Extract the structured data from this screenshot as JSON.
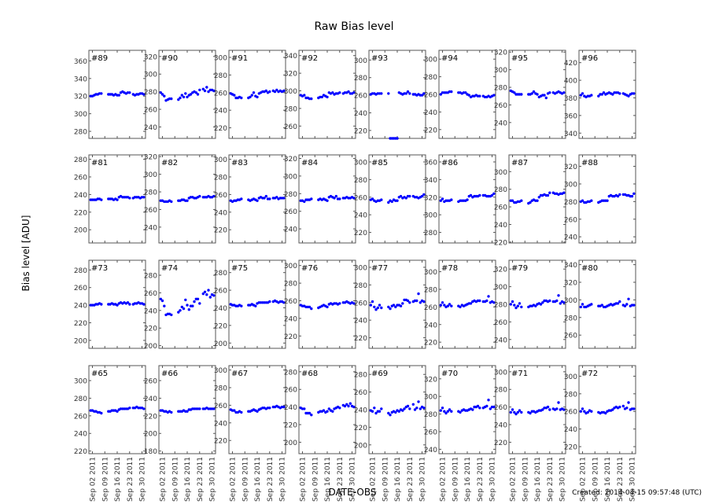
{
  "chart_data": {
    "type": "scatter",
    "title": "Raw Bias level",
    "ylabel": "Bias level [ADU]",
    "xlabel": "DATE-OBS",
    "footer": "Created: 2014-04-15 09:57:48 (UTC)",
    "marker_color": "#0000ff",
    "grid": false,
    "xlim": [
      "2011-08-31",
      "2011-10-02"
    ],
    "x_ticks": [
      "2011-09-02",
      "2011-09-09",
      "2011-09-16",
      "2011-09-23",
      "2011-09-30"
    ],
    "x_tick_labels": [
      "Sep 02 2011",
      "Sep 09 2011",
      "Sep 16 2011",
      "Sep 23 2011",
      "Sep 30 2011"
    ],
    "y_tick_step": 20,
    "dates": [
      "2011-09-01",
      "2011-09-02",
      "2011-09-03",
      "2011-09-04",
      "2011-09-05",
      "2011-09-06",
      "2011-09-07",
      "2011-09-11",
      "2011-09-12",
      "2011-09-13",
      "2011-09-14",
      "2011-09-15",
      "2011-09-16",
      "2011-09-17",
      "2011-09-18",
      "2011-09-19",
      "2011-09-20",
      "2011-09-21",
      "2011-09-22",
      "2011-09-23",
      "2011-09-25",
      "2011-09-26",
      "2011-09-27",
      "2011-09-28",
      "2011-09-29",
      "2011-09-30",
      "2011-10-01"
    ],
    "panels": [
      {
        "label": "#89",
        "ylim": [
          272,
          372
        ],
        "values": [
          320,
          320,
          321,
          322,
          322,
          323,
          323,
          322,
          322,
          322,
          321,
          322,
          321,
          321,
          324,
          325,
          324,
          323,
          324,
          324,
          322,
          321,
          322,
          322,
          323,
          323,
          322
        ]
      },
      {
        "label": "#90",
        "ylim": [
          227,
          327
        ],
        "values": [
          279,
          277,
          275,
          270,
          271,
          272,
          272,
          271,
          273,
          276,
          274,
          278,
          274,
          276,
          277,
          279,
          280,
          279,
          277,
          282,
          283,
          281,
          285,
          280,
          282,
          282,
          281
        ]
      },
      {
        "label": "#91",
        "ylim": [
          208,
          308
        ],
        "values": [
          259,
          258,
          257,
          254,
          254,
          255,
          254,
          254,
          255,
          257,
          260,
          256,
          255,
          259,
          260,
          261,
          261,
          262,
          260,
          261,
          262,
          261,
          263,
          261,
          262,
          261,
          262
        ]
      },
      {
        "label": "#92",
        "ylim": [
          246,
          346
        ],
        "values": [
          295,
          294,
          295,
          292,
          292,
          291,
          291,
          292,
          293,
          293,
          295,
          294,
          293,
          298,
          297,
          298,
          296,
          297,
          297,
          298,
          297,
          298,
          298,
          299,
          297,
          297,
          298
        ]
      },
      {
        "label": "#93",
        "ylim": [
          211,
          311
        ],
        "values": [
          261,
          262,
          262,
          261,
          262,
          262,
          262,
          262,
          211,
          211,
          211,
          211,
          211,
          263,
          262,
          261,
          262,
          262,
          264,
          262,
          261,
          261,
          260,
          261,
          260,
          260,
          262
        ]
      },
      {
        "label": "#94",
        "ylim": [
          210,
          310
        ],
        "values": [
          260,
          262,
          262,
          262,
          262,
          263,
          263,
          262,
          262,
          261,
          262,
          262,
          260,
          259,
          257,
          258,
          258,
          259,
          258,
          258,
          258,
          257,
          257,
          258,
          257,
          258,
          259
        ]
      },
      {
        "label": "#95",
        "ylim": [
          222,
          322
        ],
        "values": [
          276,
          275,
          274,
          272,
          272,
          272,
          272,
          272,
          272,
          273,
          275,
          273,
          272,
          269,
          270,
          271,
          271,
          268,
          273,
          274,
          274,
          273,
          274,
          275,
          274,
          273,
          274
        ]
      },
      {
        "label": "#96",
        "ylim": [
          334,
          434
        ],
        "values": [
          383,
          385,
          382,
          381,
          382,
          382,
          383,
          382,
          384,
          384,
          386,
          384,
          385,
          386,
          385,
          384,
          386,
          386,
          386,
          385,
          385,
          384,
          383,
          382,
          384,
          385,
          385
        ]
      },
      {
        "label": "#81",
        "ylim": [
          185,
          285
        ],
        "values": [
          234,
          234,
          234,
          234,
          235,
          235,
          234,
          235,
          235,
          235,
          234,
          235,
          234,
          237,
          238,
          237,
          237,
          237,
          237,
          236,
          236,
          237,
          237,
          237,
          236,
          237,
          237
        ]
      },
      {
        "label": "#82",
        "ylim": [
          222,
          322
        ],
        "values": [
          270,
          270,
          269,
          269,
          269,
          270,
          269,
          270,
          270,
          271,
          271,
          270,
          270,
          273,
          274,
          274,
          273,
          273,
          274,
          275,
          274,
          274,
          274,
          275,
          274,
          274,
          275
        ]
      },
      {
        "label": "#83",
        "ylim": [
          205,
          305
        ],
        "values": [
          253,
          252,
          253,
          253,
          254,
          254,
          255,
          254,
          253,
          254,
          255,
          254,
          253,
          256,
          257,
          256,
          256,
          258,
          255,
          255,
          256,
          256,
          257,
          255,
          256,
          256,
          256
        ]
      },
      {
        "label": "#84",
        "ylim": [
          224,
          324
        ],
        "values": [
          272,
          272,
          271,
          273,
          273,
          273,
          274,
          273,
          274,
          273,
          274,
          273,
          272,
          276,
          277,
          276,
          275,
          277,
          274,
          274,
          275,
          275,
          276,
          275,
          275,
          276,
          275
        ]
      },
      {
        "label": "#85",
        "ylim": [
          208,
          308
        ],
        "values": [
          257,
          258,
          256,
          255,
          256,
          256,
          257,
          254,
          256,
          255,
          257,
          256,
          256,
          260,
          261,
          259,
          260,
          259,
          261,
          261,
          261,
          260,
          260,
          259,
          260,
          261,
          263
        ]
      },
      {
        "label": "#86",
        "ylim": [
          268,
          368
        ],
        "values": [
          316,
          318,
          315,
          316,
          316,
          316,
          317,
          315,
          316,
          316,
          316,
          316,
          317,
          321,
          322,
          320,
          321,
          321,
          321,
          322,
          322,
          322,
          321,
          321,
          321,
          322,
          324
        ]
      },
      {
        "label": "#87",
        "ylim": [
          219,
          319
        ],
        "values": [
          267,
          267,
          265,
          265,
          266,
          266,
          267,
          264,
          265,
          267,
          268,
          267,
          267,
          271,
          273,
          273,
          274,
          273,
          273,
          276,
          276,
          275,
          275,
          274,
          275,
          275,
          276
        ]
      },
      {
        "label": "#88",
        "ylim": [
          233,
          333
        ],
        "values": [
          280,
          281,
          279,
          279,
          280,
          280,
          281,
          279,
          280,
          281,
          281,
          281,
          281,
          286,
          287,
          286,
          286,
          287,
          286,
          288,
          288,
          288,
          287,
          287,
          286,
          286,
          289
        ]
      },
      {
        "label": "#73",
        "ylim": [
          191,
          291
        ],
        "values": [
          240,
          240,
          240,
          241,
          241,
          242,
          241,
          241,
          241,
          242,
          241,
          241,
          240,
          242,
          243,
          242,
          243,
          242,
          243,
          241,
          241,
          242,
          242,
          243,
          242,
          242,
          241
        ]
      },
      {
        "label": "#74",
        "ylim": [
          197,
          297
        ],
        "values": [
          253,
          251,
          245,
          235,
          236,
          236,
          235,
          238,
          240,
          244,
          242,
          252,
          246,
          241,
          245,
          245,
          250,
          253,
          253,
          248,
          259,
          261,
          258,
          263,
          255,
          258,
          257
        ]
      },
      {
        "label": "#75",
        "ylim": [
          194,
          294
        ],
        "values": [
          244,
          243,
          243,
          242,
          242,
          243,
          242,
          243,
          243,
          244,
          243,
          242,
          245,
          246,
          246,
          246,
          246,
          246,
          246,
          247,
          247,
          248,
          247,
          246,
          247,
          247,
          246
        ]
      },
      {
        "label": "#76",
        "ylim": [
          206,
          306
        ],
        "values": [
          255,
          254,
          254,
          253,
          253,
          253,
          251,
          252,
          253,
          254,
          255,
          254,
          253,
          256,
          257,
          256,
          257,
          257,
          256,
          257,
          258,
          258,
          259,
          258,
          257,
          258,
          257
        ]
      },
      {
        "label": "#77",
        "ylim": [
          208,
          308
        ],
        "values": [
          257,
          261,
          255,
          252,
          254,
          257,
          254,
          255,
          253,
          256,
          257,
          255,
          257,
          257,
          256,
          259,
          263,
          263,
          262,
          260,
          261,
          262,
          262,
          270,
          260,
          262,
          261
        ]
      },
      {
        "label": "#78",
        "ylim": [
          213,
          313
        ],
        "values": [
          262,
          265,
          262,
          260,
          261,
          263,
          261,
          261,
          260,
          262,
          261,
          262,
          263,
          264,
          264,
          266,
          267,
          266,
          267,
          267,
          266,
          266,
          267,
          272,
          265,
          266,
          265
        ]
      },
      {
        "label": "#79",
        "ylim": [
          230,
          330
        ],
        "values": [
          280,
          283,
          279,
          276,
          278,
          281,
          277,
          277,
          278,
          278,
          279,
          278,
          280,
          281,
          280,
          282,
          284,
          284,
          283,
          284,
          283,
          283,
          284,
          290,
          281,
          283,
          282
        ]
      },
      {
        "label": "#80",
        "ylim": [
          245,
          345
        ],
        "values": [
          292,
          295,
          292,
          292,
          293,
          294,
          295,
          293,
          293,
          294,
          292,
          292,
          293,
          294,
          295,
          294,
          295,
          296,
          296,
          298,
          294,
          293,
          295,
          301,
          293,
          294,
          294
        ]
      },
      {
        "label": "#65",
        "ylim": [
          217,
          317
        ],
        "values": [
          266,
          266,
          265,
          265,
          264,
          264,
          263,
          265,
          265,
          266,
          266,
          266,
          265,
          267,
          268,
          268,
          268,
          268,
          268,
          269,
          269,
          269,
          270,
          269,
          269,
          269,
          268
        ]
      },
      {
        "label": "#66",
        "ylim": [
          177,
          277
        ],
        "values": [
          226,
          226,
          225,
          225,
          224,
          225,
          224,
          225,
          225,
          225,
          226,
          225,
          225,
          227,
          227,
          228,
          228,
          228,
          228,
          228,
          228,
          228,
          229,
          228,
          228,
          228,
          228
        ]
      },
      {
        "label": "#67",
        "ylim": [
          205,
          305
        ],
        "values": [
          255,
          254,
          254,
          252,
          252,
          253,
          252,
          253,
          253,
          254,
          255,
          254,
          253,
          255,
          256,
          257,
          257,
          256,
          257,
          257,
          258,
          258,
          259,
          258,
          257,
          258,
          258
        ]
      },
      {
        "label": "#68",
        "ylim": [
          187,
          287
        ],
        "values": [
          239,
          238,
          238,
          233,
          233,
          233,
          231,
          234,
          235,
          235,
          236,
          234,
          235,
          238,
          236,
          235,
          238,
          239,
          240,
          239,
          242,
          241,
          243,
          241,
          244,
          241,
          240
        ]
      },
      {
        "label": "#69",
        "ylim": [
          190,
          290
        ],
        "values": [
          239,
          238,
          242,
          236,
          238,
          238,
          241,
          236,
          234,
          237,
          238,
          237,
          239,
          238,
          240,
          239,
          241,
          243,
          244,
          241,
          246,
          240,
          242,
          249,
          241,
          243,
          242
        ]
      },
      {
        "label": "#70",
        "ylim": [
          235,
          335
        ],
        "values": [
          284,
          287,
          283,
          281,
          283,
          285,
          283,
          283,
          282,
          284,
          285,
          284,
          284,
          285,
          286,
          285,
          288,
          288,
          289,
          287,
          287,
          288,
          289,
          296,
          286,
          288,
          288
        ]
      },
      {
        "label": "#71",
        "ylim": [
          207,
          307
        ],
        "values": [
          254,
          257,
          254,
          252,
          254,
          256,
          254,
          254,
          253,
          255,
          255,
          254,
          255,
          256,
          256,
          257,
          259,
          259,
          260,
          257,
          258,
          257,
          258,
          265,
          257,
          258,
          257
        ]
      },
      {
        "label": "#72",
        "ylim": [
          212,
          312
        ],
        "values": [
          260,
          263,
          260,
          258,
          259,
          261,
          260,
          259,
          258,
          259,
          259,
          258,
          260,
          261,
          261,
          262,
          264,
          265,
          264,
          265,
          266,
          263,
          264,
          270,
          262,
          263,
          263
        ]
      }
    ]
  }
}
